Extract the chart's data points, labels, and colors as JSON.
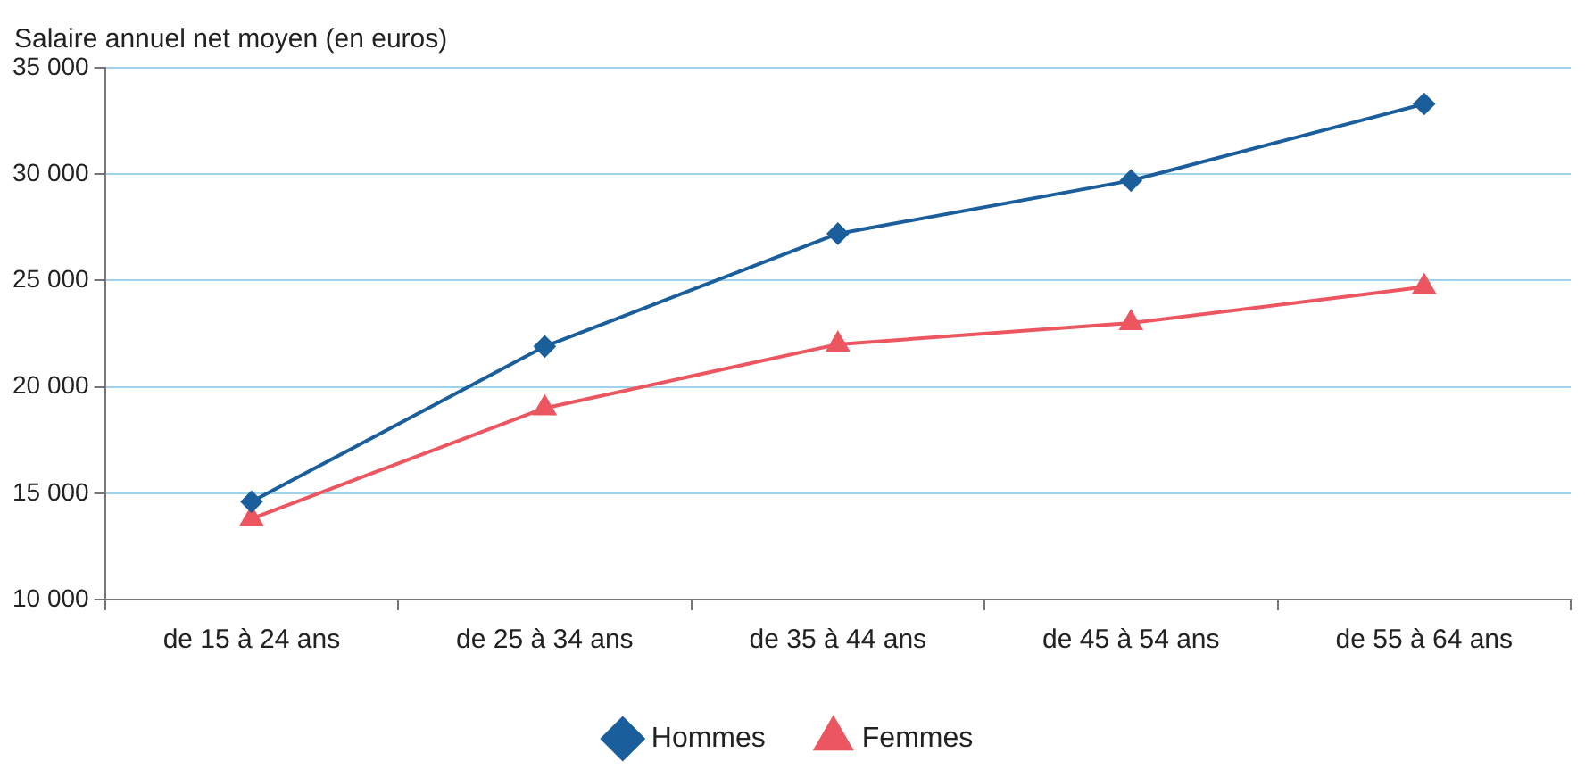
{
  "chart_data": {
    "type": "line",
    "ylabel": "Salaire annuel net moyen (en euros)",
    "categories": [
      "de 15 à 24 ans",
      "de 25 à 34 ans",
      "de 35 à 44 ans",
      "de 45 à 54 ans",
      "de 55 à 64 ans"
    ],
    "series": [
      {
        "name": "Hommes",
        "color": "#1a5e9c",
        "marker": "diamond",
        "values": [
          14600,
          21900,
          27200,
          29700,
          33300
        ]
      },
      {
        "name": "Femmes",
        "color": "#ec5660",
        "marker": "triangle",
        "values": [
          13800,
          19000,
          22000,
          23000,
          24700
        ]
      }
    ],
    "ylim": [
      10000,
      35000
    ],
    "yticks": [
      {
        "value": 10000,
        "label": "10 000"
      },
      {
        "value": 15000,
        "label": "15 000"
      },
      {
        "value": 20000,
        "label": "20 000"
      },
      {
        "value": 25000,
        "label": "25 000"
      },
      {
        "value": 30000,
        "label": "30 000"
      },
      {
        "value": 35000,
        "label": "35 000"
      }
    ],
    "grid": "y",
    "legend": "bottom",
    "line_style": "solid"
  }
}
